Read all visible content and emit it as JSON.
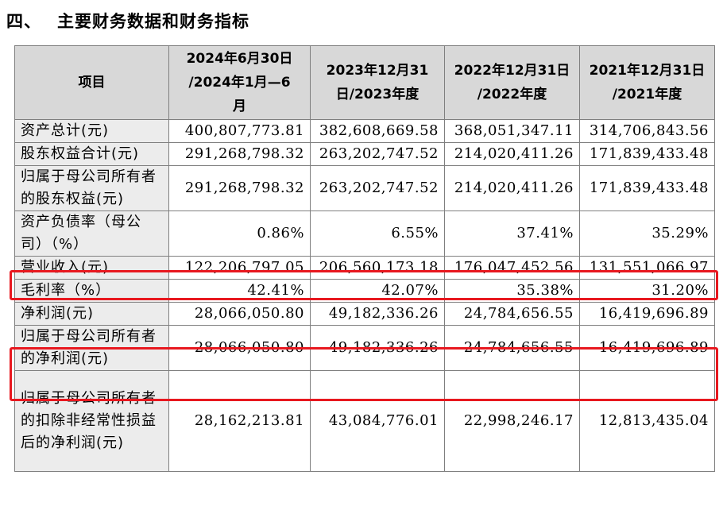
{
  "section": {
    "number": "四、",
    "title": "主要财务数据和财务指标"
  },
  "table": {
    "headers": [
      "项目",
      "2024年6月30日\n/2024年1月—6\n月",
      "2023年12月31\n日/2023年度",
      "2022年12月31日\n/2022年度",
      "2021年12月31日\n/2021年度"
    ],
    "rows": [
      {
        "label": "资产总计(元)",
        "values": [
          "400,807,773.81",
          "382,608,669.58",
          "368,051,347.11",
          "314,706,843.56"
        ]
      },
      {
        "label": "股东权益合计(元)",
        "values": [
          "291,268,798.32",
          "263,202,747.52",
          "214,020,411.26",
          "171,839,433.48"
        ]
      },
      {
        "label": "归属于母公司所有者的股东权益(元)",
        "values": [
          "291,268,798.32",
          "263,202,747.52",
          "214,020,411.26",
          "171,839,433.48"
        ]
      },
      {
        "label": "资产负债率（母公司）（%）",
        "values": [
          "0.86%",
          "6.55%",
          "37.41%",
          "35.29%"
        ]
      },
      {
        "label": "营业收入(元)",
        "values": [
          "122,206,797.05",
          "206,560,173.18",
          "176,047,452.56",
          "131,551,066.97"
        ]
      },
      {
        "label": "毛利率（%）",
        "values": [
          "42.41%",
          "42.07%",
          "35.38%",
          "31.20%"
        ]
      },
      {
        "label": "净利润(元)",
        "values": [
          "28,066,050.80",
          "49,182,336.26",
          "24,784,656.55",
          "16,419,696.89"
        ]
      },
      {
        "label": "归属于母公司所有者的净利润(元)",
        "values": [
          "28,066,050.80",
          "49,182,336.26",
          "24,784,656.55",
          "16,419,696.89"
        ]
      },
      {
        "label": "归属于母公司所有者的扣除非经常性损益后的净利润(元)",
        "values": [
          "28,162,213.81",
          "43,084,776.01",
          "22,998,246.17",
          "12,813,435.04"
        ]
      }
    ]
  },
  "highlight_color": "#e8181f"
}
